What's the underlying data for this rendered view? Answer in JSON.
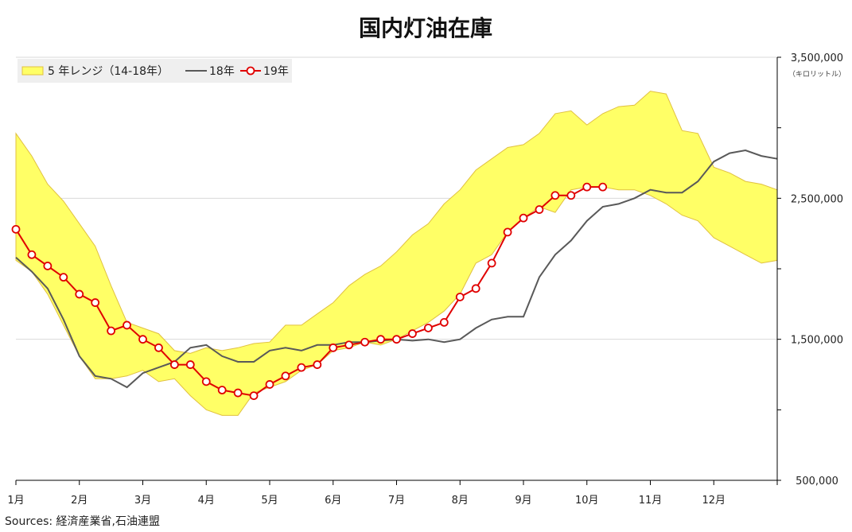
{
  "chart_data": {
    "type": "line",
    "title": "国内灯油在庫",
    "y_unit": "（キロリットル）",
    "ylim": [
      500000,
      3500000
    ],
    "y_ticks": [
      500000,
      1500000,
      2500000,
      3500000
    ],
    "y_tick_labels": [
      "500,000",
      "1,500,000",
      "2,500,000",
      "3,500,000"
    ],
    "x_range": [
      0,
      12
    ],
    "x_ticks": [
      0,
      1,
      2,
      3,
      4,
      5,
      6,
      7,
      8,
      9,
      10,
      11
    ],
    "x_tick_labels": [
      "1月",
      "2月",
      "3月",
      "4月",
      "5月",
      "6月",
      "7月",
      "8月",
      "9月",
      "10月",
      "11月",
      "12月"
    ],
    "grid": "horizontal",
    "legend_position": "top-left",
    "legend": {
      "range": "5 年レンジ（14-18年）",
      "y18": "18年",
      "y19": "19年"
    },
    "colors": {
      "range_fill": "#ffff66",
      "range_stroke": "#e0c040",
      "y18": "#595959",
      "y19": "#e00000",
      "grid": "#d9d9d9"
    },
    "range_x": [
      0,
      0.25,
      0.5,
      0.75,
      1.0,
      1.25,
      1.5,
      1.75,
      2.0,
      2.25,
      2.5,
      2.75,
      3.0,
      3.25,
      3.5,
      3.75,
      4.0,
      4.25,
      4.5,
      4.75,
      5.0,
      5.25,
      5.5,
      5.75,
      6.0,
      6.25,
      6.5,
      6.75,
      7.0,
      7.25,
      7.5,
      7.75,
      8.0,
      8.25,
      8.5,
      8.75,
      9.0,
      9.25,
      9.5,
      9.75,
      10.0,
      10.25,
      10.5,
      10.75,
      11.0,
      11.25,
      11.5,
      11.75,
      12.0
    ],
    "range_upper": [
      2960000,
      2800000,
      2600000,
      2480000,
      2320000,
      2160000,
      1880000,
      1620000,
      1580000,
      1540000,
      1420000,
      1400000,
      1440000,
      1420000,
      1440000,
      1470000,
      1480000,
      1600000,
      1600000,
      1680000,
      1760000,
      1880000,
      1960000,
      2020000,
      2120000,
      2240000,
      2320000,
      2460000,
      2560000,
      2700000,
      2780000,
      2860000,
      2880000,
      2960000,
      3100000,
      3120000,
      3020000,
      3100000,
      3150000,
      3160000,
      3260000,
      3240000,
      2980000,
      2960000,
      2720000,
      2680000,
      2620000,
      2600000,
      2560000
    ],
    "range_lower": [
      2060000,
      1980000,
      1820000,
      1600000,
      1380000,
      1220000,
      1220000,
      1240000,
      1280000,
      1200000,
      1220000,
      1100000,
      1000000,
      960000,
      960000,
      1120000,
      1160000,
      1200000,
      1280000,
      1320000,
      1420000,
      1440000,
      1480000,
      1460000,
      1500000,
      1560000,
      1620000,
      1700000,
      1820000,
      2040000,
      2100000,
      2260000,
      2360000,
      2440000,
      2400000,
      2560000,
      2580000,
      2580000,
      2560000,
      2560000,
      2520000,
      2460000,
      2380000,
      2340000,
      2220000,
      2160000,
      2100000,
      2040000,
      2060000
    ],
    "series": [
      {
        "name": "18年",
        "x": [
          0,
          0.25,
          0.5,
          0.75,
          1.0,
          1.25,
          1.5,
          1.75,
          2.0,
          2.25,
          2.5,
          2.75,
          3.0,
          3.25,
          3.5,
          3.75,
          4.0,
          4.25,
          4.5,
          4.75,
          5.0,
          5.25,
          5.5,
          5.75,
          6.0,
          6.25,
          6.5,
          6.75,
          7.0,
          7.25,
          7.5,
          7.75,
          8.0,
          8.25,
          8.5,
          8.75,
          9.0,
          9.25,
          9.5,
          9.75,
          10.0,
          10.25,
          10.5,
          10.75,
          11.0,
          11.25,
          11.5,
          11.75,
          12.0
        ],
        "values": [
          2080000,
          1980000,
          1860000,
          1640000,
          1380000,
          1240000,
          1220000,
          1160000,
          1260000,
          1300000,
          1340000,
          1440000,
          1460000,
          1380000,
          1340000,
          1340000,
          1420000,
          1440000,
          1420000,
          1460000,
          1460000,
          1480000,
          1480000,
          1490000,
          1500000,
          1490000,
          1500000,
          1480000,
          1500000,
          1580000,
          1640000,
          1660000,
          1660000,
          1940000,
          2100000,
          2200000,
          2340000,
          2440000,
          2460000,
          2500000,
          2560000,
          2540000,
          2540000,
          2620000,
          2760000,
          2820000,
          2840000,
          2800000,
          2780000
        ]
      },
      {
        "name": "19年",
        "x": [
          0,
          0.25,
          0.5,
          0.75,
          1.0,
          1.25,
          1.5,
          1.75,
          2.0,
          2.25,
          2.5,
          2.75,
          3.0,
          3.25,
          3.5,
          3.75,
          4.0,
          4.25,
          4.5,
          4.75,
          5.0,
          5.25,
          5.5,
          5.75,
          6.0,
          6.25,
          6.5,
          6.75,
          7.0,
          7.25,
          7.5,
          7.75,
          8.0,
          8.25,
          8.5,
          8.75,
          9.0,
          9.25
        ],
        "values": [
          2280000,
          2100000,
          2020000,
          1940000,
          1820000,
          1760000,
          1560000,
          1600000,
          1500000,
          1440000,
          1320000,
          1320000,
          1200000,
          1140000,
          1120000,
          1100000,
          1180000,
          1240000,
          1300000,
          1320000,
          1440000,
          1460000,
          1480000,
          1500000,
          1500000,
          1540000,
          1580000,
          1620000,
          1800000,
          1860000,
          2040000,
          2260000,
          2360000,
          2420000,
          2520000,
          2520000,
          2580000,
          2580000
        ]
      }
    ],
    "source": "Sources: 経済産業省,石油連盟"
  }
}
